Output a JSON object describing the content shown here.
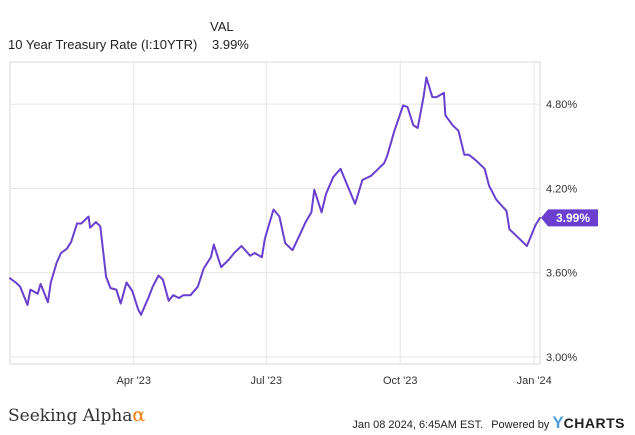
{
  "legend": {
    "header": "VAL",
    "series_name": "10 Year Treasury Rate (I:10YTR)",
    "series_value": "3.99%"
  },
  "footer": {
    "brand": "Seeking Alpha",
    "brand_symbol": "α",
    "timestamp": "Jan 08 2024, 6:45AM EST.",
    "powered_by": "Powered by",
    "ycharts_y": "Y",
    "ycharts_rest": "CHARTS"
  },
  "colors": {
    "line": "#6a3fd0",
    "grid": "#e4e4e4",
    "badge": "#6a3fd0",
    "brand_accent": "#ff7a00",
    "ycharts_blue": "#4b9fd6"
  },
  "chart_data": {
    "type": "line",
    "title": "",
    "xlabel": "",
    "ylabel": "",
    "x_ticks": [
      "Apr '23",
      "Jul '23",
      "Oct '23",
      "Jan '24"
    ],
    "y_ticks": [
      "3.00%",
      "3.60%",
      "4.20%",
      "4.80%"
    ],
    "y_tick_values": [
      3.0,
      3.6,
      4.2,
      4.8
    ],
    "ylim": [
      2.95,
      5.1
    ],
    "x_range": [
      "2023-01-06",
      "2024-01-05"
    ],
    "grid": true,
    "current_value_label": "3.99%",
    "series": [
      {
        "name": "10 Year Treasury Rate (I:10YTR)",
        "x": [
          "2023-01-06",
          "2023-01-10",
          "2023-01-13",
          "2023-01-18",
          "2023-01-20",
          "2023-01-25",
          "2023-01-27",
          "2023-02-01",
          "2023-02-03",
          "2023-02-07",
          "2023-02-10",
          "2023-02-14",
          "2023-02-17",
          "2023-02-21",
          "2023-02-24",
          "2023-03-01",
          "2023-03-02",
          "2023-03-06",
          "2023-03-09",
          "2023-03-13",
          "2023-03-16",
          "2023-03-20",
          "2023-03-23",
          "2023-03-27",
          "2023-03-31",
          "2023-04-04",
          "2023-04-06",
          "2023-04-11",
          "2023-04-14",
          "2023-04-18",
          "2023-04-21",
          "2023-04-25",
          "2023-04-28",
          "2023-05-02",
          "2023-05-05",
          "2023-05-10",
          "2023-05-15",
          "2023-05-19",
          "2023-05-24",
          "2023-05-26",
          "2023-05-31",
          "2023-06-05",
          "2023-06-09",
          "2023-06-14",
          "2023-06-20",
          "2023-06-23",
          "2023-06-28",
          "2023-06-30",
          "2023-07-06",
          "2023-07-10",
          "2023-07-14",
          "2023-07-19",
          "2023-07-24",
          "2023-07-28",
          "2023-08-01",
          "2023-08-03",
          "2023-08-08",
          "2023-08-11",
          "2023-08-16",
          "2023-08-21",
          "2023-08-25",
          "2023-08-31",
          "2023-09-05",
          "2023-09-11",
          "2023-09-15",
          "2023-09-20",
          "2023-09-22",
          "2023-09-27",
          "2023-10-03",
          "2023-10-06",
          "2023-10-10",
          "2023-10-13",
          "2023-10-17",
          "2023-10-19",
          "2023-10-23",
          "2023-10-26",
          "2023-10-31",
          "2023-11-01",
          "2023-11-06",
          "2023-11-10",
          "2023-11-14",
          "2023-11-17",
          "2023-11-22",
          "2023-11-28",
          "2023-12-01",
          "2023-12-06",
          "2023-12-13",
          "2023-12-15",
          "2023-12-20",
          "2023-12-27",
          "2024-01-02",
          "2024-01-05"
        ],
        "values": [
          3.56,
          3.53,
          3.5,
          3.37,
          3.48,
          3.45,
          3.52,
          3.39,
          3.53,
          3.67,
          3.74,
          3.77,
          3.82,
          3.95,
          3.95,
          4.0,
          3.92,
          3.96,
          3.93,
          3.57,
          3.49,
          3.48,
          3.38,
          3.53,
          3.47,
          3.34,
          3.3,
          3.42,
          3.5,
          3.58,
          3.55,
          3.4,
          3.44,
          3.42,
          3.44,
          3.44,
          3.5,
          3.63,
          3.71,
          3.8,
          3.64,
          3.69,
          3.74,
          3.79,
          3.72,
          3.74,
          3.71,
          3.84,
          4.05,
          4.0,
          3.81,
          3.76,
          3.87,
          3.96,
          4.03,
          4.19,
          4.03,
          4.16,
          4.28,
          4.34,
          4.24,
          4.09,
          4.26,
          4.29,
          4.33,
          4.38,
          4.43,
          4.61,
          4.79,
          4.78,
          4.65,
          4.63,
          4.85,
          4.99,
          4.85,
          4.85,
          4.88,
          4.72,
          4.65,
          4.61,
          4.44,
          4.44,
          4.4,
          4.34,
          4.22,
          4.12,
          4.04,
          3.91,
          3.86,
          3.79,
          3.94,
          3.99
        ]
      }
    ]
  }
}
